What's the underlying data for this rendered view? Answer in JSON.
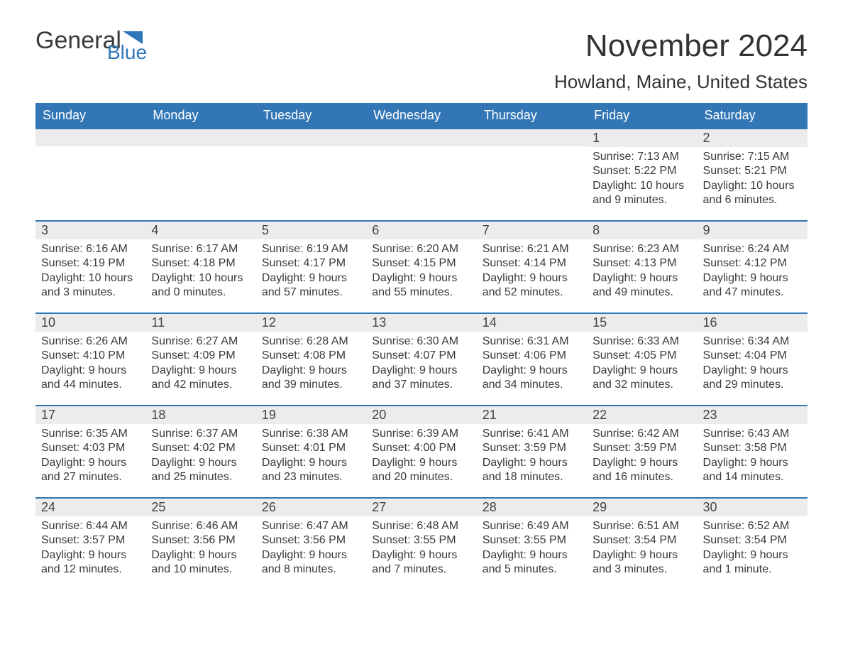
{
  "brand": {
    "text1": "General",
    "text2": "Blue",
    "icon_color": "#2f76bb"
  },
  "title": "November 2024",
  "location": "Howland, Maine, United States",
  "colors": {
    "header_bg": "#3276b6",
    "header_text": "#ffffff",
    "daynum_bg": "#ececec",
    "week_border": "#3276b6",
    "body_text": "#3a3a3a",
    "page_bg": "#ffffff"
  },
  "fonts": {
    "title_size": 44,
    "location_size": 26,
    "head_size": 18,
    "daynum_size": 18,
    "body_size": 16
  },
  "day_labels": [
    "Sunday",
    "Monday",
    "Tuesday",
    "Wednesday",
    "Thursday",
    "Friday",
    "Saturday"
  ],
  "weeks": [
    [
      {
        "n": "",
        "sunrise": "",
        "sunset": "",
        "daylight": ""
      },
      {
        "n": "",
        "sunrise": "",
        "sunset": "",
        "daylight": ""
      },
      {
        "n": "",
        "sunrise": "",
        "sunset": "",
        "daylight": ""
      },
      {
        "n": "",
        "sunrise": "",
        "sunset": "",
        "daylight": ""
      },
      {
        "n": "",
        "sunrise": "",
        "sunset": "",
        "daylight": ""
      },
      {
        "n": "1",
        "sunrise": "Sunrise: 7:13 AM",
        "sunset": "Sunset: 5:22 PM",
        "daylight": "Daylight: 10 hours and 9 minutes."
      },
      {
        "n": "2",
        "sunrise": "Sunrise: 7:15 AM",
        "sunset": "Sunset: 5:21 PM",
        "daylight": "Daylight: 10 hours and 6 minutes."
      }
    ],
    [
      {
        "n": "3",
        "sunrise": "Sunrise: 6:16 AM",
        "sunset": "Sunset: 4:19 PM",
        "daylight": "Daylight: 10 hours and 3 minutes."
      },
      {
        "n": "4",
        "sunrise": "Sunrise: 6:17 AM",
        "sunset": "Sunset: 4:18 PM",
        "daylight": "Daylight: 10 hours and 0 minutes."
      },
      {
        "n": "5",
        "sunrise": "Sunrise: 6:19 AM",
        "sunset": "Sunset: 4:17 PM",
        "daylight": "Daylight: 9 hours and 57 minutes."
      },
      {
        "n": "6",
        "sunrise": "Sunrise: 6:20 AM",
        "sunset": "Sunset: 4:15 PM",
        "daylight": "Daylight: 9 hours and 55 minutes."
      },
      {
        "n": "7",
        "sunrise": "Sunrise: 6:21 AM",
        "sunset": "Sunset: 4:14 PM",
        "daylight": "Daylight: 9 hours and 52 minutes."
      },
      {
        "n": "8",
        "sunrise": "Sunrise: 6:23 AM",
        "sunset": "Sunset: 4:13 PM",
        "daylight": "Daylight: 9 hours and 49 minutes."
      },
      {
        "n": "9",
        "sunrise": "Sunrise: 6:24 AM",
        "sunset": "Sunset: 4:12 PM",
        "daylight": "Daylight: 9 hours and 47 minutes."
      }
    ],
    [
      {
        "n": "10",
        "sunrise": "Sunrise: 6:26 AM",
        "sunset": "Sunset: 4:10 PM",
        "daylight": "Daylight: 9 hours and 44 minutes."
      },
      {
        "n": "11",
        "sunrise": "Sunrise: 6:27 AM",
        "sunset": "Sunset: 4:09 PM",
        "daylight": "Daylight: 9 hours and 42 minutes."
      },
      {
        "n": "12",
        "sunrise": "Sunrise: 6:28 AM",
        "sunset": "Sunset: 4:08 PM",
        "daylight": "Daylight: 9 hours and 39 minutes."
      },
      {
        "n": "13",
        "sunrise": "Sunrise: 6:30 AM",
        "sunset": "Sunset: 4:07 PM",
        "daylight": "Daylight: 9 hours and 37 minutes."
      },
      {
        "n": "14",
        "sunrise": "Sunrise: 6:31 AM",
        "sunset": "Sunset: 4:06 PM",
        "daylight": "Daylight: 9 hours and 34 minutes."
      },
      {
        "n": "15",
        "sunrise": "Sunrise: 6:33 AM",
        "sunset": "Sunset: 4:05 PM",
        "daylight": "Daylight: 9 hours and 32 minutes."
      },
      {
        "n": "16",
        "sunrise": "Sunrise: 6:34 AM",
        "sunset": "Sunset: 4:04 PM",
        "daylight": "Daylight: 9 hours and 29 minutes."
      }
    ],
    [
      {
        "n": "17",
        "sunrise": "Sunrise: 6:35 AM",
        "sunset": "Sunset: 4:03 PM",
        "daylight": "Daylight: 9 hours and 27 minutes."
      },
      {
        "n": "18",
        "sunrise": "Sunrise: 6:37 AM",
        "sunset": "Sunset: 4:02 PM",
        "daylight": "Daylight: 9 hours and 25 minutes."
      },
      {
        "n": "19",
        "sunrise": "Sunrise: 6:38 AM",
        "sunset": "Sunset: 4:01 PM",
        "daylight": "Daylight: 9 hours and 23 minutes."
      },
      {
        "n": "20",
        "sunrise": "Sunrise: 6:39 AM",
        "sunset": "Sunset: 4:00 PM",
        "daylight": "Daylight: 9 hours and 20 minutes."
      },
      {
        "n": "21",
        "sunrise": "Sunrise: 6:41 AM",
        "sunset": "Sunset: 3:59 PM",
        "daylight": "Daylight: 9 hours and 18 minutes."
      },
      {
        "n": "22",
        "sunrise": "Sunrise: 6:42 AM",
        "sunset": "Sunset: 3:59 PM",
        "daylight": "Daylight: 9 hours and 16 minutes."
      },
      {
        "n": "23",
        "sunrise": "Sunrise: 6:43 AM",
        "sunset": "Sunset: 3:58 PM",
        "daylight": "Daylight: 9 hours and 14 minutes."
      }
    ],
    [
      {
        "n": "24",
        "sunrise": "Sunrise: 6:44 AM",
        "sunset": "Sunset: 3:57 PM",
        "daylight": "Daylight: 9 hours and 12 minutes."
      },
      {
        "n": "25",
        "sunrise": "Sunrise: 6:46 AM",
        "sunset": "Sunset: 3:56 PM",
        "daylight": "Daylight: 9 hours and 10 minutes."
      },
      {
        "n": "26",
        "sunrise": "Sunrise: 6:47 AM",
        "sunset": "Sunset: 3:56 PM",
        "daylight": "Daylight: 9 hours and 8 minutes."
      },
      {
        "n": "27",
        "sunrise": "Sunrise: 6:48 AM",
        "sunset": "Sunset: 3:55 PM",
        "daylight": "Daylight: 9 hours and 7 minutes."
      },
      {
        "n": "28",
        "sunrise": "Sunrise: 6:49 AM",
        "sunset": "Sunset: 3:55 PM",
        "daylight": "Daylight: 9 hours and 5 minutes."
      },
      {
        "n": "29",
        "sunrise": "Sunrise: 6:51 AM",
        "sunset": "Sunset: 3:54 PM",
        "daylight": "Daylight: 9 hours and 3 minutes."
      },
      {
        "n": "30",
        "sunrise": "Sunrise: 6:52 AM",
        "sunset": "Sunset: 3:54 PM",
        "daylight": "Daylight: 9 hours and 1 minute."
      }
    ]
  ]
}
